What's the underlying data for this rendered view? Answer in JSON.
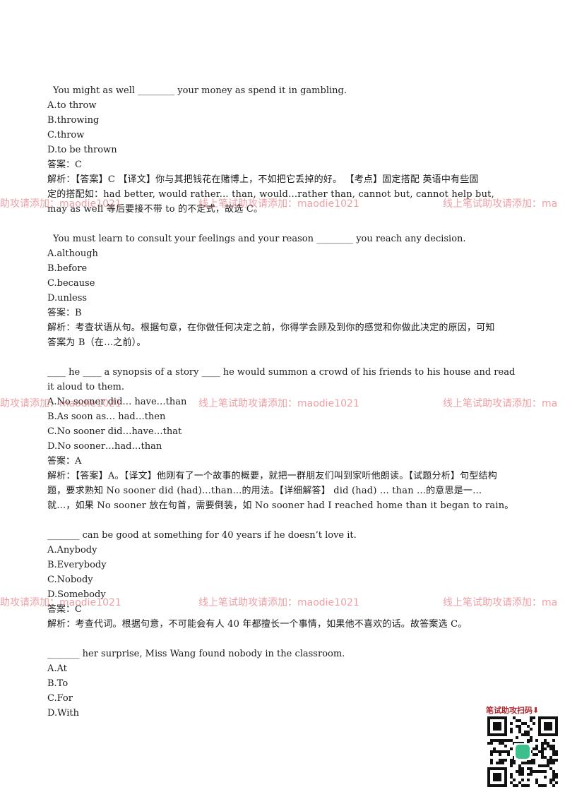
{
  "questions": [
    {
      "stem": "You might as well ________ your money as spend it in gambling.",
      "options": [
        "A.to throw",
        "B.throwing",
        "C.throw",
        "D.to be thrown"
      ],
      "answer": "答案：C",
      "analysis_lines": [
        "解析：【答案】C  【译文】你与其把钱花在赌博上，不如把它丢掉的好。   【考点】固定搭配  英语中有些固",
        "定的搭配如：had better, would rather... than, would…rather than, cannot but, cannot help but,",
        "may as well 等后要接不带 to 的不定式，故选 C。"
      ]
    },
    {
      "stem": "You must learn to consult your feelings and your reason ________ you reach any decision.",
      "options": [
        "A.although",
        "B.before",
        "C.because",
        "D.unless"
      ],
      "answer": "答案：B",
      "analysis_lines": [
        "解析：考查状语从句。根据句意，在你做任何决定之前，你得学会顾及到你的感觉和你做此决定的原因，可知",
        "答案为 B（在…之前）。"
      ]
    },
    {
      "stem_lines": [
        "____ he ____ a synopsis of a story ____ he would summon a crowd of his friends to his house and read",
        "it aloud to them."
      ],
      "options": [
        "A.No sooner did… have…than",
        "B.As soon as… had…then",
        "C.No sooner did…have…that",
        "D.No sooner…had…than"
      ],
      "answer": "答案：A",
      "analysis_lines": [
        "解析：【答案】A。【译文】他刚有了一个故事的概要，就把一群朋友们叫到家听他朗读。【试题分析】句型结构",
        "题，要求熟知 No sooner did (had)...than...的用法。【详细解答】 did (had) ... than ...的意思是一…",
        "就…，如果 No sooner 放在句首，需要倒装，如 No sooner had I reached home than it began to rain。"
      ]
    },
    {
      "stem": "_______ can be good at something for 40 years if he doesn’t love it.",
      "options": [
        "A.Anybody",
        "B.Everybody",
        "C.Nobody",
        "D.Somebody"
      ],
      "answer": "答案：C",
      "analysis_lines": [
        "解析：考查代词。根据句意，不可能会有人 40 年都擅长一个事情，如果他不喜欢的话。故答案选 C。"
      ]
    },
    {
      "stem": "_______ her surprise, Miss Wang found nobody in the classroom.",
      "options": [
        "A.At",
        "B.To",
        "C.For",
        "D.With"
      ]
    }
  ],
  "watermarks": {
    "left": "助攻请添加：maodie1021",
    "center": "线上笔试助攻请添加：maodie1021",
    "right": "线上笔试助攻请添加：ma"
  },
  "qr": {
    "title": "笔试助攻扫码⬇"
  }
}
